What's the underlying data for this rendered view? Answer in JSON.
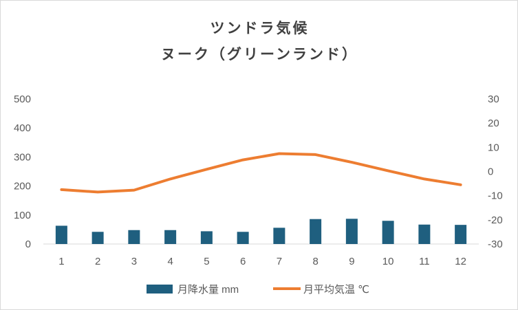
{
  "chart_data": {
    "type": "bar+line",
    "title": [
      "ツンドラ気候",
      "ヌーク（グリーンランド）"
    ],
    "categories": [
      "1",
      "2",
      "3",
      "4",
      "5",
      "6",
      "7",
      "8",
      "9",
      "10",
      "11",
      "12"
    ],
    "series": [
      {
        "name": "月降水量 mm",
        "type": "bar",
        "axis": "left",
        "color": "#1f5f7f",
        "values": [
          63,
          42,
          48,
          48,
          44,
          42,
          56,
          86,
          87,
          80,
          67,
          66
        ]
      },
      {
        "name": "月平均気温 ℃",
        "type": "line",
        "axis": "right",
        "color": "#ed7d31",
        "values": [
          -7.5,
          -8.5,
          -7.7,
          -3.1,
          0.9,
          4.8,
          7.4,
          7.0,
          3.8,
          0.3,
          -3.1,
          -5.5
        ]
      }
    ],
    "y_left": {
      "min": 0,
      "max": 500,
      "ticks": [
        "500",
        "400",
        "300",
        "200",
        "100",
        "0"
      ]
    },
    "y_right": {
      "min": -30,
      "max": 30,
      "ticks": [
        "30",
        "20",
        "10",
        "0",
        "-10",
        "-20",
        "-30"
      ]
    },
    "grid": false,
    "legend": "bottom"
  }
}
